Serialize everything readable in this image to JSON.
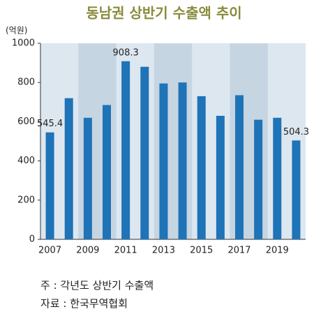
{
  "chart_data": {
    "type": "bar",
    "title": "동남권 상반기 수출액 추이",
    "y_unit": "(억원)",
    "categories": [
      "2007",
      null,
      "2009",
      null,
      "2011",
      null,
      "2013",
      null,
      "2015",
      null,
      "2017",
      null,
      "2019",
      null
    ],
    "values": [
      545.4,
      720,
      620,
      685,
      908.3,
      880,
      795,
      800,
      730,
      630,
      735,
      610,
      620,
      504.3
    ],
    "value_labels": [
      "545.4",
      null,
      null,
      null,
      "908.3",
      null,
      null,
      null,
      null,
      null,
      null,
      null,
      null,
      "504.3"
    ],
    "color": "#1f73b7",
    "ylim": [
      0,
      1000
    ],
    "yticks": [
      0,
      200,
      400,
      600,
      800,
      1000
    ],
    "grid": false
  },
  "notes": [
    "주 : 각년도 상반기 수출액",
    "자료 : 한국무역협회"
  ]
}
